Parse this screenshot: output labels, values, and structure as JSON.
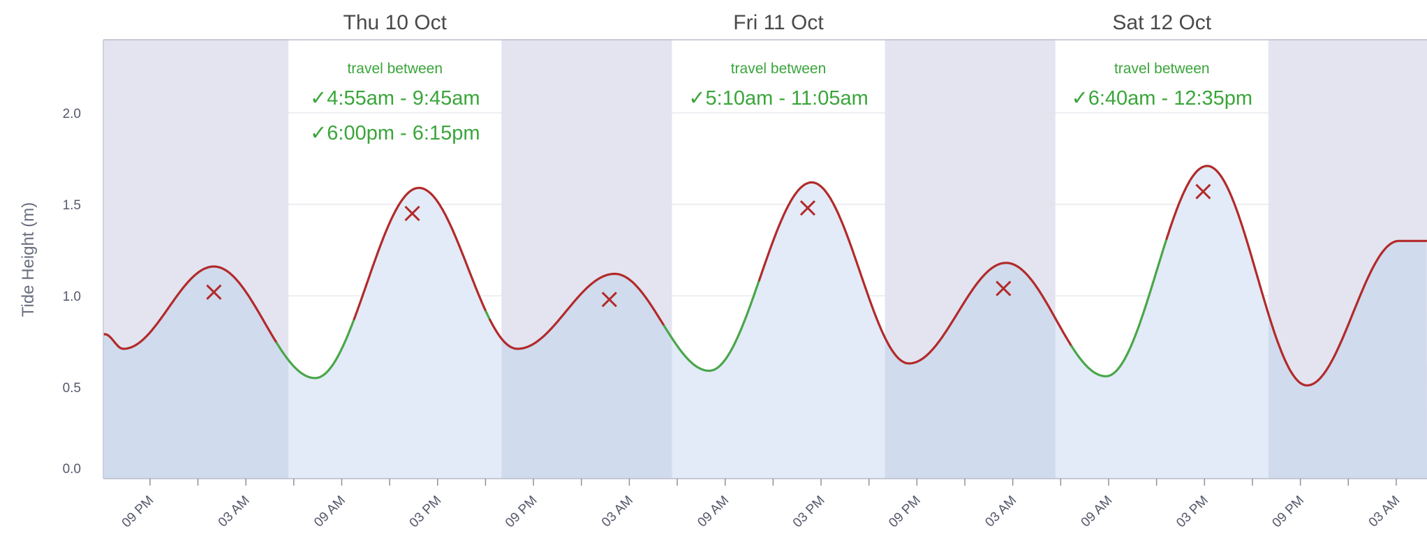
{
  "chart_data": {
    "type": "area",
    "ylabel": "Tide Height (m)",
    "ylim": [
      0,
      2.4
    ],
    "y_ticks": [
      "0.0",
      "0.5",
      "1.0",
      "1.5",
      "2.0"
    ],
    "grid": true,
    "x_ticks": [
      "09 PM",
      "03 AM",
      "09 AM",
      "03 PM",
      "09 PM",
      "03 AM",
      "09 AM",
      "03 PM",
      "09 PM",
      "03 AM",
      "09 AM",
      "03 PM",
      "09 PM",
      "03 AM"
    ],
    "days": [
      {
        "label": "Thu 10 Oct",
        "travel_heading": "travel between",
        "windows": [
          "✓4:55am - 9:45am",
          "✓6:00pm - 6:15pm"
        ]
      },
      {
        "label": "Fri 11 Oct",
        "travel_heading": "travel between",
        "windows": [
          "✓5:10am - 11:05am"
        ]
      },
      {
        "label": "Sat 12 Oct",
        "travel_heading": "travel between",
        "windows": [
          "✓6:40am - 12:35pm"
        ]
      }
    ],
    "daylight_periods": [
      {
        "start": "10 Oct 05:40",
        "end": "10 Oct 19:00"
      },
      {
        "start": "11 Oct 05:40",
        "end": "11 Oct 19:00"
      },
      {
        "start": "12 Oct 05:40",
        "end": "12 Oct 19:00"
      }
    ],
    "tide_extremes": [
      {
        "time": "9 Oct 18:10",
        "height": 0.79
      },
      {
        "time": "9 Oct 19:20",
        "height": 0.71
      },
      {
        "time": "10 Oct 01:00",
        "height": 1.16
      },
      {
        "time": "10 Oct 07:20",
        "height": 0.55
      },
      {
        "time": "10 Oct 13:50",
        "height": 1.59
      },
      {
        "time": "10 Oct 20:00",
        "height": 0.71
      },
      {
        "time": "11 Oct 02:05",
        "height": 1.12
      },
      {
        "time": "11 Oct 08:00",
        "height": 0.59
      },
      {
        "time": "11 Oct 14:25",
        "height": 1.62
      },
      {
        "time": "11 Oct 20:30",
        "height": 0.63
      },
      {
        "time": "12 Oct 02:35",
        "height": 1.18
      },
      {
        "time": "12 Oct 08:50",
        "height": 0.56
      },
      {
        "time": "12 Oct 15:10",
        "height": 1.71
      },
      {
        "time": "12 Oct 21:25",
        "height": 0.51
      },
      {
        "time": "13 Oct 03:10",
        "height": 1.3
      }
    ],
    "travel_windows": [
      {
        "start": "10 Oct 04:55",
        "end": "10 Oct 09:45"
      },
      {
        "start": "10 Oct 18:00",
        "end": "10 Oct 18:15"
      },
      {
        "start": "11 Oct 05:10",
        "end": "11 Oct 11:05"
      },
      {
        "start": "12 Oct 06:40",
        "end": "12 Oct 12:35"
      }
    ],
    "markers": [
      {
        "time": "10 Oct 01:00",
        "height": 1.02
      },
      {
        "time": "10 Oct 13:25",
        "height": 1.45
      },
      {
        "time": "11 Oct 01:45",
        "height": 0.98
      },
      {
        "time": "11 Oct 14:10",
        "height": 1.48
      },
      {
        "time": "12 Oct 02:25",
        "height": 1.04
      },
      {
        "time": "12 Oct 14:55",
        "height": 1.57
      }
    ],
    "colors": {
      "tide_line": "#b22a2a",
      "travel_line": "#4aa64a",
      "night_band": "#e3e4f0",
      "day_band": "#ffffff",
      "area_fill_day": "#e2ebf7",
      "area_fill_night": "#d0dbed",
      "marker": "#b22a2a",
      "travel_text": "#3aa53a"
    }
  }
}
